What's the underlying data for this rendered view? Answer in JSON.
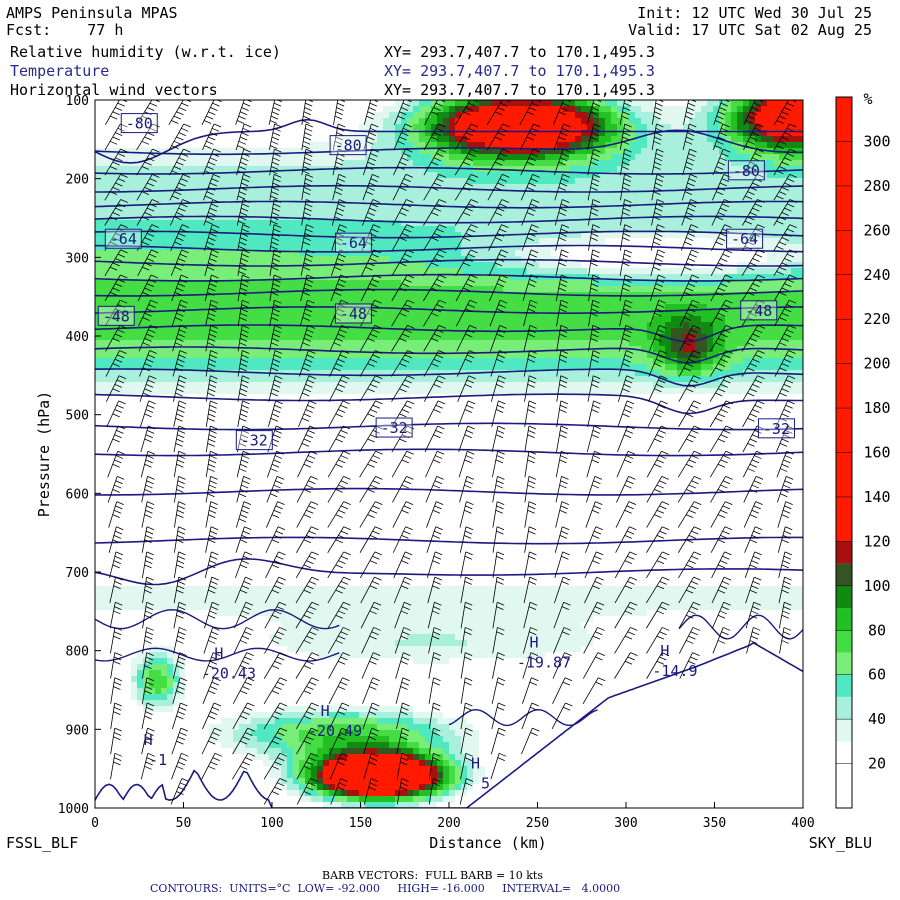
{
  "header": {
    "model": "AMPS Peninsula MPAS",
    "fcst": "Fcst:    77 h",
    "init": "Init: 12 UTC Wed 30 Jul 25",
    "valid": "Valid: 17 UTC Sat 02 Aug 25",
    "fields": [
      {
        "name": "Relative humidity (w.r.t. ice)",
        "xy": "XY= 293.7,407.7 to 170.1,495.3"
      },
      {
        "name": "Temperature",
        "xy": "XY= 293.7,407.7 to 170.1,495.3"
      },
      {
        "name": "Horizontal wind vectors",
        "xy": "XY= 293.7,407.7 to 170.1,495.3"
      }
    ]
  },
  "footer": {
    "barb": "BARB VECTORS:  FULL BARB = 10 kts",
    "contours": "CONTOURS:  UNITS=°C  LOW= -92.000     HIGH= -16.000     INTERVAL=   4.0000"
  },
  "colors": {
    "temp_contour": "#1a1a80",
    "barb": "#000000"
  },
  "chart_data": {
    "type": "heatmap",
    "xlabel": "Distance (km)",
    "ylabel": "Pressure (hPa)",
    "xlim": [
      0,
      400
    ],
    "ylim": [
      1000,
      100
    ],
    "x_ticks": [
      0,
      50,
      100,
      150,
      200,
      250,
      300,
      350,
      400
    ],
    "y_ticks": [
      100,
      200,
      300,
      400,
      500,
      600,
      700,
      800,
      900,
      1000
    ],
    "endpoints": {
      "left": "FSSL_BLF",
      "right": "SKY_BLU"
    },
    "colorbar": {
      "unit": "%",
      "levels": [
        0,
        20,
        30,
        40,
        50,
        60,
        70,
        80,
        90,
        100,
        110,
        120,
        140,
        160,
        180,
        200,
        220,
        240,
        260,
        280,
        300,
        320
      ],
      "tick_labels": [
        20,
        40,
        60,
        80,
        100,
        120,
        140,
        160,
        180,
        200,
        220,
        240,
        260,
        280,
        300
      ],
      "colors": [
        "#ffffff",
        "#ffffff",
        "#e0f8f0",
        "#a8f0dc",
        "#50e8c0",
        "#78ee78",
        "#44dd44",
        "#22c022",
        "#108a10",
        "#335522",
        "#a81010",
        "#ff1a00",
        "#ff1a00",
        "#ff1a00",
        "#ff1a00",
        "#ff1a00",
        "#ff1a00",
        "#ff1a00",
        "#ff1a00",
        "#ff1a00",
        "#ff1a00"
      ]
    },
    "isotherm_labels": [
      {
        "x": 25,
        "p": 130,
        "text": "-80"
      },
      {
        "x": 143,
        "p": 158,
        "text": "-80"
      },
      {
        "x": 368,
        "p": 190,
        "text": "-80"
      },
      {
        "x": 16,
        "p": 277,
        "text": "-64"
      },
      {
        "x": 146,
        "p": 282,
        "text": "-64"
      },
      {
        "x": 367,
        "p": 277,
        "text": "-64"
      },
      {
        "x": 12,
        "p": 375,
        "text": "-48"
      },
      {
        "x": 146,
        "p": 372,
        "text": "-48"
      },
      {
        "x": 375,
        "p": 368,
        "text": "-48"
      },
      {
        "x": 90,
        "p": 533,
        "text": "-32"
      },
      {
        "x": 169,
        "p": 517,
        "text": "-32"
      },
      {
        "x": 385,
        "p": 518,
        "text": "-32"
      }
    ],
    "highs": [
      {
        "x": 70,
        "p": 820,
        "value": "-20.43"
      },
      {
        "x": 130,
        "p": 893,
        "value": "-20.49"
      },
      {
        "x": 248,
        "p": 806,
        "value": "-19.87"
      },
      {
        "x": 322,
        "p": 817,
        "value": "-14.9"
      },
      {
        "x": 30,
        "p": 930,
        "value": "-1"
      },
      {
        "x": 215,
        "p": 960,
        "value": "5"
      }
    ]
  }
}
